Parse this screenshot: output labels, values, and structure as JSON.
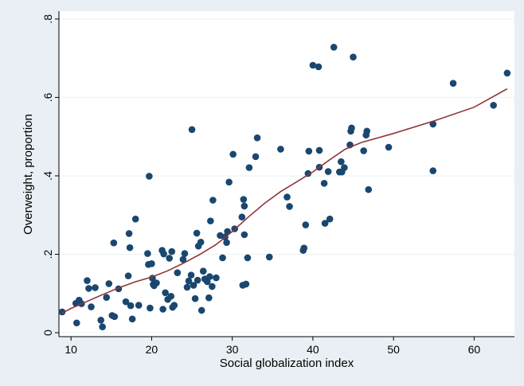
{
  "chart_data": {
    "type": "scatter",
    "xlabel": "Social globalization index",
    "ylabel": "Overweight, proportion",
    "xlim": [
      8.5,
      65
    ],
    "ylim": [
      -0.01,
      0.82
    ],
    "xticks": [
      10,
      20,
      30,
      40,
      50,
      60
    ],
    "yticks": [
      0,
      0.2,
      0.4,
      0.6,
      0.8
    ],
    "ytick_labels": [
      "0",
      ".2",
      ".4",
      ".6",
      ".8"
    ],
    "grid": "horizontal",
    "marker_color": "#1a476f",
    "line_color": "#90353b",
    "plot_background": "#ffffff",
    "outer_background": "#e9eff4",
    "points": [
      [
        8.9,
        0.053
      ],
      [
        10.6,
        0.075
      ],
      [
        10.7,
        0.025
      ],
      [
        11.0,
        0.083
      ],
      [
        11.3,
        0.074
      ],
      [
        12.0,
        0.133
      ],
      [
        12.2,
        0.113
      ],
      [
        12.5,
        0.066
      ],
      [
        13.0,
        0.115
      ],
      [
        13.7,
        0.032
      ],
      [
        13.9,
        0.015
      ],
      [
        14.4,
        0.09
      ],
      [
        14.7,
        0.125
      ],
      [
        15.1,
        0.044
      ],
      [
        15.3,
        0.229
      ],
      [
        15.4,
        0.041
      ],
      [
        15.9,
        0.112
      ],
      [
        16.8,
        0.079
      ],
      [
        17.1,
        0.145
      ],
      [
        17.2,
        0.253
      ],
      [
        17.3,
        0.217
      ],
      [
        17.4,
        0.069
      ],
      [
        17.6,
        0.035
      ],
      [
        18.0,
        0.29
      ],
      [
        18.4,
        0.07
      ],
      [
        19.5,
        0.202
      ],
      [
        19.6,
        0.174
      ],
      [
        19.7,
        0.399
      ],
      [
        19.8,
        0.063
      ],
      [
        20.0,
        0.176
      ],
      [
        20.1,
        0.139
      ],
      [
        20.2,
        0.123
      ],
      [
        20.3,
        0.12
      ],
      [
        20.6,
        0.127
      ],
      [
        21.3,
        0.21
      ],
      [
        21.4,
        0.06
      ],
      [
        21.5,
        0.201
      ],
      [
        21.7,
        0.102
      ],
      [
        22.0,
        0.085
      ],
      [
        22.2,
        0.19
      ],
      [
        22.4,
        0.093
      ],
      [
        22.5,
        0.207
      ],
      [
        22.6,
        0.065
      ],
      [
        22.8,
        0.07
      ],
      [
        23.2,
        0.153
      ],
      [
        23.9,
        0.187
      ],
      [
        24.1,
        0.202
      ],
      [
        24.4,
        0.116
      ],
      [
        24.6,
        0.132
      ],
      [
        24.9,
        0.147
      ],
      [
        25.0,
        0.518
      ],
      [
        25.2,
        0.121
      ],
      [
        25.4,
        0.087
      ],
      [
        25.6,
        0.254
      ],
      [
        25.7,
        0.134
      ],
      [
        25.8,
        0.221
      ],
      [
        26.1,
        0.231
      ],
      [
        26.2,
        0.057
      ],
      [
        26.4,
        0.157
      ],
      [
        26.6,
        0.137
      ],
      [
        26.9,
        0.13
      ],
      [
        27.1,
        0.089
      ],
      [
        27.2,
        0.143
      ],
      [
        27.3,
        0.285
      ],
      [
        27.5,
        0.118
      ],
      [
        27.6,
        0.338
      ],
      [
        28.0,
        0.14
      ],
      [
        28.5,
        0.248
      ],
      [
        28.8,
        0.191
      ],
      [
        29.1,
        0.244
      ],
      [
        29.3,
        0.23
      ],
      [
        29.4,
        0.258
      ],
      [
        29.6,
        0.384
      ],
      [
        30.1,
        0.455
      ],
      [
        30.3,
        0.265
      ],
      [
        31.2,
        0.295
      ],
      [
        31.3,
        0.121
      ],
      [
        31.4,
        0.34
      ],
      [
        31.5,
        0.25
      ],
      [
        31.5,
        0.323
      ],
      [
        31.7,
        0.124
      ],
      [
        31.9,
        0.191
      ],
      [
        32.1,
        0.421
      ],
      [
        32.9,
        0.449
      ],
      [
        33.1,
        0.497
      ],
      [
        34.6,
        0.193
      ],
      [
        36.0,
        0.468
      ],
      [
        36.8,
        0.346
      ],
      [
        37.1,
        0.322
      ],
      [
        38.8,
        0.21
      ],
      [
        38.9,
        0.216
      ],
      [
        39.1,
        0.275
      ],
      [
        39.4,
        0.406
      ],
      [
        39.5,
        0.463
      ],
      [
        40.0,
        0.682
      ],
      [
        40.7,
        0.678
      ],
      [
        40.8,
        0.422
      ],
      [
        40.8,
        0.465
      ],
      [
        41.4,
        0.381
      ],
      [
        41.5,
        0.279
      ],
      [
        41.9,
        0.411
      ],
      [
        42.1,
        0.29
      ],
      [
        42.6,
        0.728
      ],
      [
        43.3,
        0.41
      ],
      [
        43.5,
        0.436
      ],
      [
        43.6,
        0.41
      ],
      [
        43.9,
        0.421
      ],
      [
        44.6,
        0.479
      ],
      [
        44.7,
        0.514
      ],
      [
        44.8,
        0.522
      ],
      [
        45.0,
        0.703
      ],
      [
        46.3,
        0.464
      ],
      [
        46.6,
        0.504
      ],
      [
        46.7,
        0.514
      ],
      [
        46.9,
        0.365
      ],
      [
        49.4,
        0.473
      ],
      [
        54.9,
        0.532
      ],
      [
        54.9,
        0.413
      ],
      [
        57.4,
        0.636
      ],
      [
        62.4,
        0.58
      ],
      [
        64.1,
        0.662
      ]
    ],
    "fit_line": {
      "x": [
        8.9,
        10,
        12,
        14,
        16,
        18,
        20,
        22,
        24,
        26,
        28,
        30,
        32,
        34,
        36,
        38,
        40,
        42,
        44,
        46,
        50,
        55,
        60,
        64.1
      ],
      "y": [
        0.05,
        0.062,
        0.08,
        0.098,
        0.115,
        0.13,
        0.142,
        0.158,
        0.178,
        0.2,
        0.225,
        0.258,
        0.295,
        0.33,
        0.36,
        0.385,
        0.41,
        0.44,
        0.468,
        0.485,
        0.508,
        0.54,
        0.575,
        0.622
      ]
    }
  }
}
